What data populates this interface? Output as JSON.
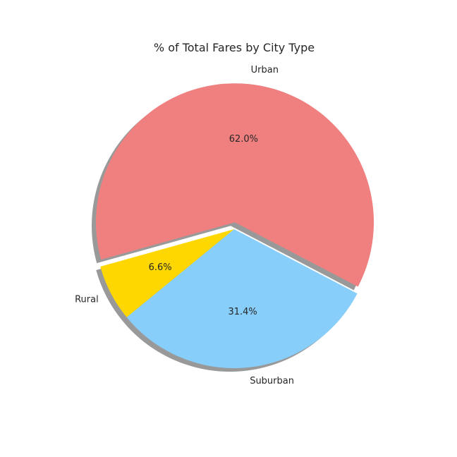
{
  "chart_data": {
    "type": "pie",
    "title": "% of Total Fares by City Type",
    "slices": [
      {
        "label": "Urban",
        "value": 62.0,
        "pct_label": "62.0%",
        "color": "#F08080",
        "explode": true
      },
      {
        "label": "Rural",
        "value": 6.6,
        "pct_label": "6.6%",
        "color": "#FFD700",
        "explode": false
      },
      {
        "label": "Suburban",
        "value": 31.4,
        "pct_label": "31.4%",
        "color": "#87CEFA",
        "explode": false
      }
    ],
    "shadow": true,
    "legend": false
  }
}
